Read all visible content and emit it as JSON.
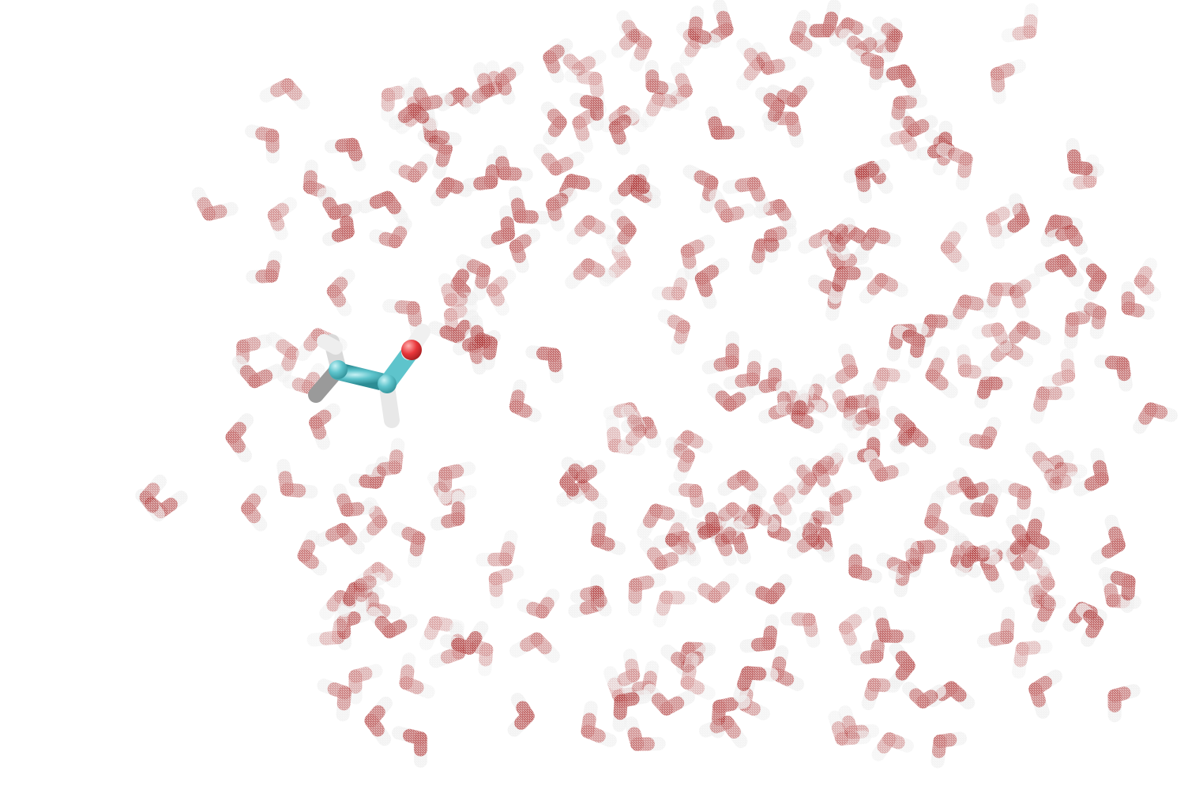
{
  "scene": {
    "description_visible_text": "",
    "solute": {
      "representation": "licorice",
      "carbon_color": "#5ec4cc",
      "oxygen_color": "#e8363a",
      "hydrogen_color": "#e6e6e6"
    },
    "solvent": {
      "molecule": "water",
      "representation": "licorice-transparent",
      "oxygen_color": "#b03a3a",
      "hydrogen_color": "#efefef",
      "count": 300
    },
    "background_color": "#ffffff"
  }
}
